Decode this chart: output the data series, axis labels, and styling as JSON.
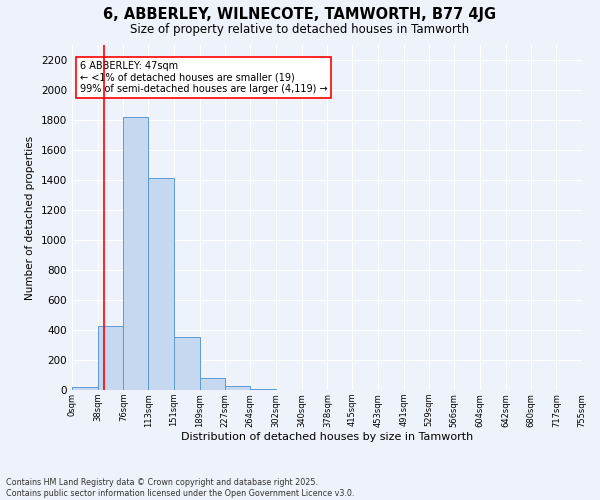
{
  "title": "6, ABBERLEY, WILNECOTE, TAMWORTH, B77 4JG",
  "subtitle": "Size of property relative to detached houses in Tamworth",
  "xlabel": "Distribution of detached houses by size in Tamworth",
  "ylabel": "Number of detached properties",
  "bar_color": "#c5d8f0",
  "bar_edge_color": "#5b9bd5",
  "background_color": "#eef2fa",
  "grid_color": "#ffffff",
  "bin_edges": [
    0,
    38,
    76,
    113,
    151,
    189,
    227,
    264,
    302,
    340,
    378,
    415,
    453,
    491,
    529,
    566,
    604,
    642,
    680,
    717,
    755
  ],
  "bin_labels": [
    "0sqm",
    "38sqm",
    "76sqm",
    "113sqm",
    "151sqm",
    "189sqm",
    "227sqm",
    "264sqm",
    "302sqm",
    "340sqm",
    "378sqm",
    "415sqm",
    "453sqm",
    "491sqm",
    "529sqm",
    "566sqm",
    "604sqm",
    "642sqm",
    "680sqm",
    "717sqm",
    "755sqm"
  ],
  "bar_heights": [
    19,
    425,
    1820,
    1415,
    355,
    80,
    30,
    5,
    2,
    1,
    1,
    0,
    0,
    0,
    0,
    0,
    0,
    0,
    0,
    0
  ],
  "ylim": [
    0,
    2300
  ],
  "yticks": [
    0,
    200,
    400,
    600,
    800,
    1000,
    1200,
    1400,
    1600,
    1800,
    2000,
    2200
  ],
  "red_line_x": 47,
  "annotation_title": "6 ABBERLEY: 47sqm",
  "annotation_line1": "← <1% of detached houses are smaller (19)",
  "annotation_line2": "99% of semi-detached houses are larger (4,119) →",
  "footer_line1": "Contains HM Land Registry data © Crown copyright and database right 2025.",
  "footer_line2": "Contains public sector information licensed under the Open Government Licence v3.0."
}
